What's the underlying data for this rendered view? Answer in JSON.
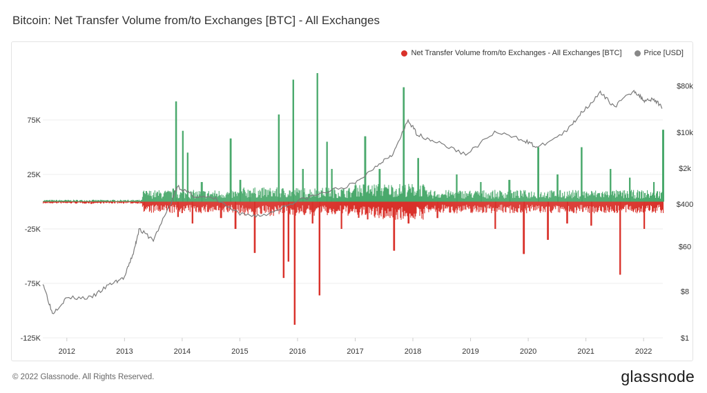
{
  "title": "Bitcoin: Net Transfer Volume from/to Exchanges [BTC] - All Exchanges",
  "footer": {
    "copyright": "© 2022 Glassnode. All Rights Reserved.",
    "brand": "glassnode"
  },
  "colors": {
    "positive": "#4aa96c",
    "negative": "#d9312a",
    "price": "#7a7a7a",
    "legend_price": "#888888"
  },
  "chart_data": {
    "type": "bar",
    "legend": [
      {
        "name": "Net Transfer Volume from/to Exchanges - All Exchanges [BTC]",
        "color": "#d9312a"
      },
      {
        "name": "Price [USD]",
        "color": "#888888"
      }
    ],
    "x_ticks": [
      "2012",
      "2013",
      "2014",
      "2015",
      "2016",
      "2017",
      "2018",
      "2019",
      "2020",
      "2021",
      "2022"
    ],
    "x_range": [
      "2011-08",
      "2022-05"
    ],
    "y_left_ticks": [
      {
        "value": 75000,
        "label": "75K"
      },
      {
        "value": 25000,
        "label": "25K"
      },
      {
        "value": -25000,
        "label": "-25K"
      },
      {
        "value": -75000,
        "label": "-75K"
      },
      {
        "value": -125000,
        "label": "-125K"
      }
    ],
    "y_left_range": [
      -125000,
      125000
    ],
    "y_right_ticks": [
      {
        "value": 80000,
        "label": "$80k"
      },
      {
        "value": 10000,
        "label": "$10k"
      },
      {
        "value": 2000,
        "label": "$2k"
      },
      {
        "value": 400,
        "label": "$400"
      },
      {
        "value": 60,
        "label": "$60"
      },
      {
        "value": 8,
        "label": "$8"
      },
      {
        "value": 1,
        "label": "$1"
      }
    ],
    "y_right_scale": "log",
    "net_flow_series": {
      "name": "Net Transfer Volume from/to Exchanges - All Exchanges [BTC]",
      "points": [
        [
          "2011-09",
          0
        ],
        [
          "2012-01",
          300
        ],
        [
          "2012-06",
          -2000
        ],
        [
          "2013-01",
          1500
        ],
        [
          "2013-05",
          -3000
        ],
        [
          "2013-11",
          12000
        ],
        [
          "2013-11-20",
          92000
        ],
        [
          "2013-12",
          -14000
        ],
        [
          "2014-01",
          65000
        ],
        [
          "2014-02",
          45000
        ],
        [
          "2014-03",
          -20000
        ],
        [
          "2014-05",
          18000
        ],
        [
          "2014-09",
          -15000
        ],
        [
          "2014-11",
          58000
        ],
        [
          "2014-12",
          -25000
        ],
        [
          "2015-01",
          20000
        ],
        [
          "2015-03",
          10000
        ],
        [
          "2015-04",
          -47000
        ],
        [
          "2015-09",
          80000
        ],
        [
          "2015-10",
          -70000
        ],
        [
          "2015-11",
          -55000
        ],
        [
          "2015-12",
          112000
        ],
        [
          "2015-12-10",
          -113000
        ],
        [
          "2016-02",
          30000
        ],
        [
          "2016-04",
          -20000
        ],
        [
          "2016-05",
          118000
        ],
        [
          "2016-05-15",
          -86000
        ],
        [
          "2016-07",
          55000
        ],
        [
          "2016-08",
          30000
        ],
        [
          "2016-10",
          -25000
        ],
        [
          "2017-01",
          15000
        ],
        [
          "2017-03",
          60000
        ],
        [
          "2017-06",
          30000
        ],
        [
          "2017-09",
          -45000
        ],
        [
          "2017-11",
          105000
        ],
        [
          "2017-12",
          -20000
        ],
        [
          "2018-02",
          40000
        ],
        [
          "2018-06",
          -15000
        ],
        [
          "2018-10",
          25000
        ],
        [
          "2019-03",
          18000
        ],
        [
          "2019-06",
          -25000
        ],
        [
          "2019-09",
          20000
        ],
        [
          "2019-12",
          -48000
        ],
        [
          "2020-03",
          50000
        ],
        [
          "2020-05",
          -35000
        ],
        [
          "2020-07",
          25000
        ],
        [
          "2020-09",
          -20000
        ],
        [
          "2020-12",
          50000
        ],
        [
          "2021-02",
          -22000
        ],
        [
          "2021-06",
          30000
        ],
        [
          "2021-08",
          -67000
        ],
        [
          "2021-10",
          22000
        ],
        [
          "2022-01",
          -25000
        ],
        [
          "2022-03",
          18000
        ],
        [
          "2022-05",
          66000
        ]
      ]
    },
    "price_series": {
      "name": "Price [USD]",
      "points": [
        [
          "2011-08",
          12
        ],
        [
          "2011-10",
          3
        ],
        [
          "2012-01",
          6
        ],
        [
          "2012-06",
          6
        ],
        [
          "2012-10",
          11
        ],
        [
          "2013-01",
          15
        ],
        [
          "2013-03",
          50
        ],
        [
          "2013-04",
          130
        ],
        [
          "2013-07",
          80
        ],
        [
          "2013-11",
          500
        ],
        [
          "2013-12",
          900
        ],
        [
          "2014-03",
          600
        ],
        [
          "2014-08",
          500
        ],
        [
          "2015-01",
          250
        ],
        [
          "2015-06",
          240
        ],
        [
          "2015-12",
          430
        ],
        [
          "2016-06",
          650
        ],
        [
          "2017-01",
          1000
        ],
        [
          "2017-06",
          2500
        ],
        [
          "2017-09",
          4000
        ],
        [
          "2017-12",
          17000
        ],
        [
          "2018-02",
          9000
        ],
        [
          "2018-06",
          6500
        ],
        [
          "2018-12",
          3700
        ],
        [
          "2019-06",
          10000
        ],
        [
          "2019-12",
          7200
        ],
        [
          "2020-03",
          5000
        ],
        [
          "2020-09",
          10500
        ],
        [
          "2020-12",
          24000
        ],
        [
          "2021-04",
          58000
        ],
        [
          "2021-07",
          32000
        ],
        [
          "2021-11",
          66000
        ],
        [
          "2022-01",
          42000
        ],
        [
          "2022-03",
          45000
        ],
        [
          "2022-05",
          30000
        ]
      ]
    }
  }
}
